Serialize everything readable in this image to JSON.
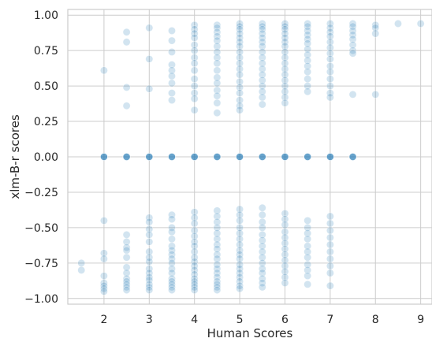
{
  "chart_data": {
    "type": "scatter",
    "title": "",
    "xlabel": "Human Scores",
    "ylabel": "xlm-B-r scores",
    "xlim": [
      1.2,
      9.25
    ],
    "ylim": [
      -1.04,
      1.04
    ],
    "xticks": [
      2,
      3,
      4,
      5,
      6,
      7,
      8,
      9
    ],
    "yticks": [
      -1.0,
      -0.75,
      -0.5,
      -0.25,
      0.0,
      0.25,
      0.5,
      0.75,
      1.0
    ],
    "xtick_labels": [
      "2",
      "3",
      "4",
      "5",
      "6",
      "7",
      "8",
      "9"
    ],
    "ytick_labels": [
      "−1.00",
      "−0.75",
      "−0.50",
      "−0.25",
      "0.00",
      "0.25",
      "0.50",
      "0.75",
      "1.00"
    ],
    "grid": true,
    "color": "#1f77b4",
    "point_alpha": 0.2,
    "columns": [
      {
        "x": 1.5,
        "y": [
          -0.75,
          -0.8
        ]
      },
      {
        "x": 2.0,
        "y": [
          0.61,
          0.0,
          -0.45,
          -0.68,
          -0.72,
          -0.84,
          -0.89,
          -0.91,
          -0.93,
          -0.95
        ]
      },
      {
        "x": 2.5,
        "y": [
          0.88,
          0.81,
          0.49,
          0.36,
          0.0,
          -0.55,
          -0.6,
          -0.64,
          -0.66,
          -0.71,
          -0.78,
          -0.82,
          -0.86,
          -0.88,
          -0.9,
          -0.92,
          -0.94
        ]
      },
      {
        "x": 3.0,
        "y": [
          0.91,
          0.69,
          0.48,
          0.0,
          -0.43,
          -0.46,
          -0.51,
          -0.55,
          -0.6,
          -0.67,
          -0.71,
          -0.74,
          -0.79,
          -0.82,
          -0.85,
          -0.87,
          -0.9,
          -0.92,
          -0.94
        ]
      },
      {
        "x": 3.5,
        "y": [
          0.89,
          0.82,
          0.74,
          0.65,
          0.61,
          0.57,
          0.52,
          0.45,
          0.4,
          0.0,
          -0.41,
          -0.44,
          -0.5,
          -0.53,
          -0.58,
          -0.63,
          -0.66,
          -0.69,
          -0.72,
          -0.75,
          -0.79,
          -0.82,
          -0.86,
          -0.88,
          -0.9,
          -0.92,
          -0.94
        ]
      },
      {
        "x": 4.0,
        "y": [
          0.93,
          0.9,
          0.87,
          0.84,
          0.79,
          0.75,
          0.7,
          0.66,
          0.61,
          0.55,
          0.5,
          0.45,
          0.41,
          0.33,
          0.0,
          -0.39,
          -0.43,
          -0.47,
          -0.52,
          -0.56,
          -0.6,
          -0.63,
          -0.67,
          -0.71,
          -0.74,
          -0.77,
          -0.8,
          -0.83,
          -0.86,
          -0.88,
          -0.9,
          -0.92,
          -0.94
        ]
      },
      {
        "x": 4.5,
        "y": [
          0.93,
          0.91,
          0.88,
          0.85,
          0.82,
          0.78,
          0.74,
          0.7,
          0.66,
          0.61,
          0.56,
          0.52,
          0.47,
          0.43,
          0.38,
          0.31,
          0.0,
          -0.38,
          -0.42,
          -0.46,
          -0.5,
          -0.54,
          -0.58,
          -0.62,
          -0.65,
          -0.69,
          -0.72,
          -0.76,
          -0.79,
          -0.82,
          -0.85,
          -0.88,
          -0.9,
          -0.92,
          -0.94
        ]
      },
      {
        "x": 5.0,
        "y": [
          0.94,
          0.92,
          0.9,
          0.87,
          0.84,
          0.81,
          0.78,
          0.74,
          0.7,
          0.66,
          0.62,
          0.58,
          0.53,
          0.49,
          0.45,
          0.4,
          0.36,
          0.33,
          0.0,
          -0.37,
          -0.41,
          -0.45,
          -0.5,
          -0.54,
          -0.58,
          -0.62,
          -0.66,
          -0.69,
          -0.72,
          -0.76,
          -0.79,
          -0.82,
          -0.85,
          -0.88,
          -0.91,
          -0.93
        ]
      },
      {
        "x": 5.5,
        "y": [
          0.94,
          0.92,
          0.9,
          0.87,
          0.84,
          0.81,
          0.78,
          0.74,
          0.7,
          0.66,
          0.62,
          0.58,
          0.54,
          0.5,
          0.46,
          0.42,
          0.37,
          0.0,
          -0.36,
          -0.41,
          -0.46,
          -0.5,
          -0.55,
          -0.59,
          -0.63,
          -0.67,
          -0.71,
          -0.75,
          -0.79,
          -0.82,
          -0.86,
          -0.89,
          -0.92
        ]
      },
      {
        "x": 6.0,
        "y": [
          0.94,
          0.92,
          0.9,
          0.87,
          0.84,
          0.81,
          0.78,
          0.74,
          0.7,
          0.66,
          0.62,
          0.58,
          0.54,
          0.5,
          0.46,
          0.42,
          0.38,
          0.0,
          -0.4,
          -0.44,
          -0.48,
          -0.53,
          -0.57,
          -0.61,
          -0.65,
          -0.69,
          -0.73,
          -0.77,
          -0.81,
          -0.85,
          -0.89
        ]
      },
      {
        "x": 6.5,
        "y": [
          0.94,
          0.92,
          0.89,
          0.86,
          0.83,
          0.8,
          0.76,
          0.72,
          0.68,
          0.64,
          0.6,
          0.55,
          0.5,
          0.46,
          0.0,
          -0.45,
          -0.5,
          -0.54,
          -0.58,
          -0.63,
          -0.67,
          -0.71,
          -0.76,
          -0.8,
          -0.84,
          -0.9
        ]
      },
      {
        "x": 7.0,
        "y": [
          0.94,
          0.91,
          0.88,
          0.85,
          0.81,
          0.77,
          0.73,
          0.69,
          0.64,
          0.6,
          0.55,
          0.5,
          0.45,
          0.42,
          0.0,
          -0.42,
          -0.47,
          -0.52,
          -0.57,
          -0.62,
          -0.67,
          -0.72,
          -0.77,
          -0.82,
          -0.91
        ]
      },
      {
        "x": 7.5,
        "y": [
          0.94,
          0.92,
          0.89,
          0.86,
          0.83,
          0.79,
          0.75,
          0.73,
          0.44,
          0.0
        ]
      },
      {
        "x": 8.0,
        "y": [
          0.93,
          0.91,
          0.87,
          0.44
        ]
      },
      {
        "x": 8.5,
        "y": [
          0.94
        ]
      },
      {
        "x": 9.0,
        "y": [
          0.94
        ]
      }
    ]
  }
}
